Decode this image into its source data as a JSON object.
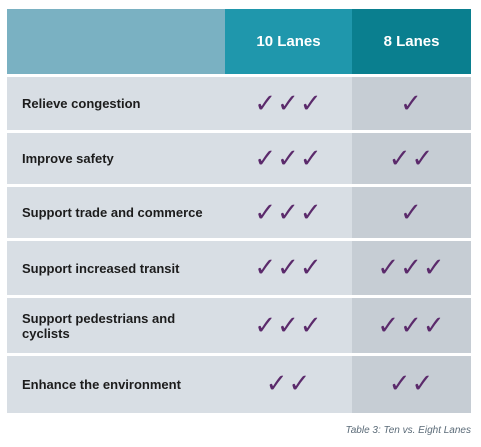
{
  "header": {
    "col1": "10 Lanes",
    "col2": "8 Lanes"
  },
  "rows": [
    {
      "label": "Relieve congestion",
      "ten": "✓✓✓",
      "eight": "✓"
    },
    {
      "label": "Improve safety",
      "ten": "✓✓✓",
      "eight": "✓✓"
    },
    {
      "label": "Support trade and commerce",
      "ten": "✓✓✓",
      "eight": "✓"
    },
    {
      "label": "Support increased transit",
      "ten": "✓✓✓",
      "eight": "✓✓✓"
    },
    {
      "label": "Support pedestrians and cyclists",
      "ten": "✓✓✓",
      "eight": "✓✓✓"
    },
    {
      "label": "Enhance the environment",
      "ten": "✓✓",
      "eight": "✓✓"
    }
  ],
  "caption": "Table 3: Ten vs. Eight Lanes",
  "colors": {
    "header_blank": "#7ab1c2",
    "header_10": "#1f97ac",
    "header_8": "#0a7f8f",
    "check": "#5b2a6b"
  }
}
